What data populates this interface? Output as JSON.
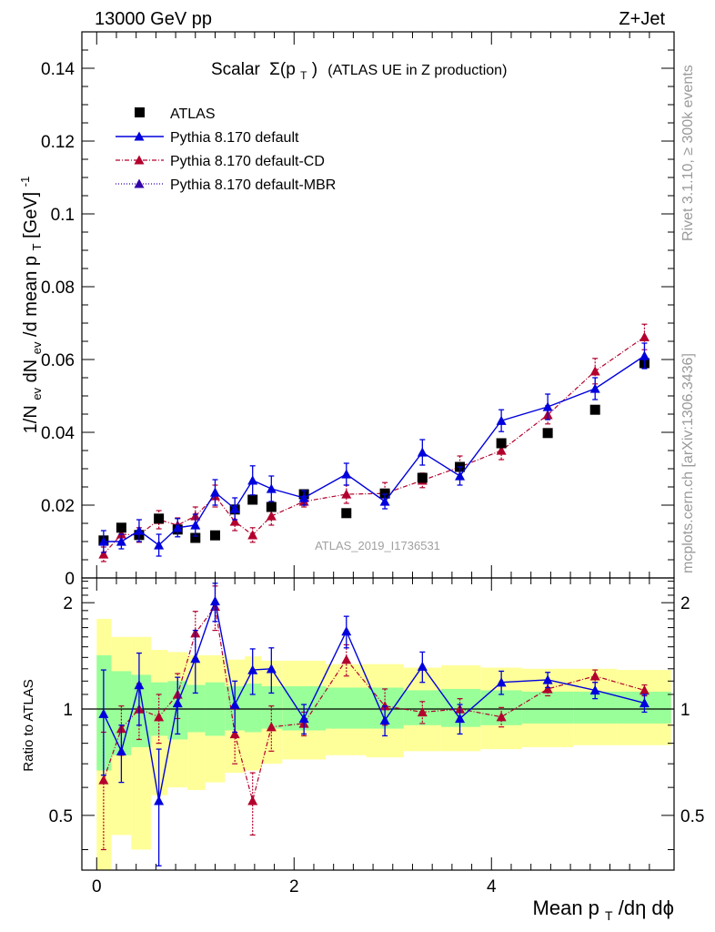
{
  "header": {
    "left": "13000 GeV pp",
    "right": "Z+Jet",
    "plot_title_prefix": "Scalar",
    "plot_title_sigma": "Σ(p",
    "plot_title_sub": "T",
    "plot_title_close": ")",
    "plot_title_suffix": "(ATLAS UE in Z production)",
    "watermark": "ATLAS_2019_I1736531"
  },
  "side_text": {
    "rivet": "Rivet 3.1.10, ≥ 300k events",
    "mcplots": "mcplots.cern.ch [arXiv:1306.3436]"
  },
  "axes": {
    "ylabel_main": "1/N_ev dN_ev/d mean p_T [GeV]^-1",
    "ylabel_main_parts": {
      "a": "1/N",
      "a_sub": "ev",
      "b": " dN",
      "b_sub": "ev",
      "c": "/d mean p",
      "c_sub": "T",
      "d": " [GeV]",
      "d_sup": "-1"
    },
    "ylabel_ratio": "Ratio to ATLAS",
    "xlabel_parts": {
      "a": "Mean p",
      "a_sub": "T",
      "b": "/dη dϕ"
    },
    "main_yticks": [
      "0",
      "0.02",
      "0.04",
      "0.06",
      "0.08",
      "0.1",
      "0.12",
      "0.14"
    ],
    "ratio_yticks_left": [
      "0.5",
      "1",
      "2"
    ],
    "ratio_yticks_right": [
      "0.5",
      "1",
      "2"
    ],
    "xticks": [
      "0",
      "2",
      "4"
    ]
  },
  "chart_data": {
    "type": "scatter",
    "title": "Scalar Σ(p_T) (ATLAS UE in Z production)",
    "xlabel": "Mean p_T/dη dϕ",
    "ylabel": "1/N_ev dN_ev/d mean p_T [GeV]^-1",
    "xlim": [
      -0.15,
      5.85
    ],
    "ylim": [
      0,
      0.15
    ],
    "ratio_ylim_log": [
      0.35,
      2.35
    ],
    "x": [
      0.07,
      0.25,
      0.43,
      0.63,
      0.82,
      1.0,
      1.2,
      1.4,
      1.58,
      1.77,
      2.1,
      2.53,
      2.92,
      3.3,
      3.68,
      4.1,
      4.57,
      5.05,
      5.55
    ],
    "legend": [
      {
        "name": "ATLAS",
        "style": "square-black"
      },
      {
        "name": "Pythia 8.170 default",
        "style": "solid-blue"
      },
      {
        "name": "Pythia 8.170 default-CD",
        "style": "dashdot-crimson"
      },
      {
        "name": "Pythia 8.170 default-MBR",
        "style": "dotted-indigo"
      }
    ],
    "colors": {
      "atlas": "#000000",
      "default": "#0000dd",
      "cd": "#b3002d",
      "mbr": "#3300aa",
      "band_inner": "#99ff99",
      "band_outer": "#ffff99"
    },
    "series": [
      {
        "name": "ATLAS",
        "values": [
          0.0103,
          0.0138,
          0.0118,
          0.0163,
          0.0133,
          0.011,
          0.0117,
          0.0188,
          0.0215,
          0.0195,
          0.023,
          0.0178,
          0.0232,
          0.0275,
          0.0305,
          0.037,
          0.0398,
          0.0462,
          0.059
        ]
      },
      {
        "name": "Pythia 8.170 default",
        "values": [
          0.01,
          0.01,
          0.013,
          0.009,
          0.0138,
          0.0145,
          0.0235,
          0.019,
          0.0268,
          0.0245,
          0.022,
          0.0285,
          0.021,
          0.0345,
          0.028,
          0.0432,
          0.047,
          0.052,
          0.061
        ],
        "errors": [
          0.003,
          0.002,
          0.003,
          0.003,
          0.0025,
          0.003,
          0.0035,
          0.003,
          0.004,
          0.0035,
          0.002,
          0.003,
          0.002,
          0.0035,
          0.0025,
          0.003,
          0.0035,
          0.003,
          0.0035
        ]
      },
      {
        "name": "Pythia 8.170 default-CD",
        "values": [
          0.0065,
          0.012,
          0.0118,
          0.016,
          0.0145,
          0.017,
          0.0225,
          0.0155,
          0.0118,
          0.017,
          0.021,
          0.023,
          0.0232,
          0.0268,
          0.0305,
          0.035,
          0.0448,
          0.0568,
          0.0662
        ],
        "errors": [
          0.002,
          0.002,
          0.002,
          0.0025,
          0.002,
          0.0025,
          0.003,
          0.0025,
          0.002,
          0.0025,
          0.0015,
          0.0025,
          0.003,
          0.002,
          0.003,
          0.0025,
          0.0025,
          0.0035,
          0.0035
        ]
      },
      {
        "name": "Pythia 8.170 default-MBR",
        "values": []
      }
    ],
    "ratio_series": [
      {
        "name": "Pythia 8.170 default",
        "values": [
          0.97,
          0.76,
          1.17,
          0.55,
          1.04,
          1.39,
          2.02,
          1.03,
          1.29,
          1.3,
          0.94,
          1.66,
          0.93,
          1.32,
          0.94,
          1.19,
          1.21,
          1.13,
          1.04
        ],
        "errors": [
          0.32,
          0.14,
          0.27,
          0.22,
          0.19,
          0.28,
          0.25,
          0.17,
          0.19,
          0.19,
          0.09,
          0.17,
          0.09,
          0.13,
          0.09,
          0.09,
          0.06,
          0.06,
          0.06
        ]
      },
      {
        "name": "Pythia 8.170 default-CD",
        "values": [
          0.63,
          0.88,
          1.0,
          0.95,
          1.1,
          1.64,
          1.95,
          0.85,
          0.55,
          0.89,
          0.91,
          1.38,
          1.02,
          0.98,
          1.0,
          0.95,
          1.14,
          1.24,
          1.13
        ],
        "errors": [
          0.23,
          0.14,
          0.18,
          0.15,
          0.16,
          0.25,
          0.28,
          0.15,
          0.11,
          0.13,
          0.07,
          0.14,
          0.12,
          0.07,
          0.07,
          0.06,
          0.05,
          0.05,
          0.04
        ]
      }
    ],
    "bands": {
      "edges": [
        0.0,
        0.15,
        0.35,
        0.55,
        0.72,
        0.92,
        1.1,
        1.3,
        1.5,
        1.67,
        1.88,
        2.32,
        2.73,
        3.11,
        3.49,
        3.89,
        4.31,
        4.83,
        5.27,
        5.82
      ],
      "inner_lo": [
        0.67,
        0.74,
        0.78,
        0.84,
        0.82,
        0.86,
        0.84,
        0.87,
        0.86,
        0.88,
        0.87,
        0.88,
        0.88,
        0.9,
        0.89,
        0.9,
        0.91,
        0.91,
        0.91
      ],
      "inner_hi": [
        1.42,
        1.28,
        1.25,
        1.19,
        1.2,
        1.17,
        1.19,
        1.16,
        1.18,
        1.16,
        1.16,
        1.15,
        1.15,
        1.13,
        1.14,
        1.13,
        1.12,
        1.12,
        1.12
      ],
      "outer_lo": [
        0.33,
        0.44,
        0.4,
        0.57,
        0.6,
        0.59,
        0.62,
        0.66,
        0.67,
        0.7,
        0.72,
        0.74,
        0.73,
        0.76,
        0.76,
        0.77,
        0.78,
        0.79,
        0.79
      ],
      "outer_hi": [
        1.8,
        1.6,
        1.6,
        1.47,
        1.45,
        1.42,
        1.42,
        1.38,
        1.41,
        1.37,
        1.37,
        1.34,
        1.34,
        1.31,
        1.33,
        1.31,
        1.3,
        1.3,
        1.29
      ]
    }
  }
}
